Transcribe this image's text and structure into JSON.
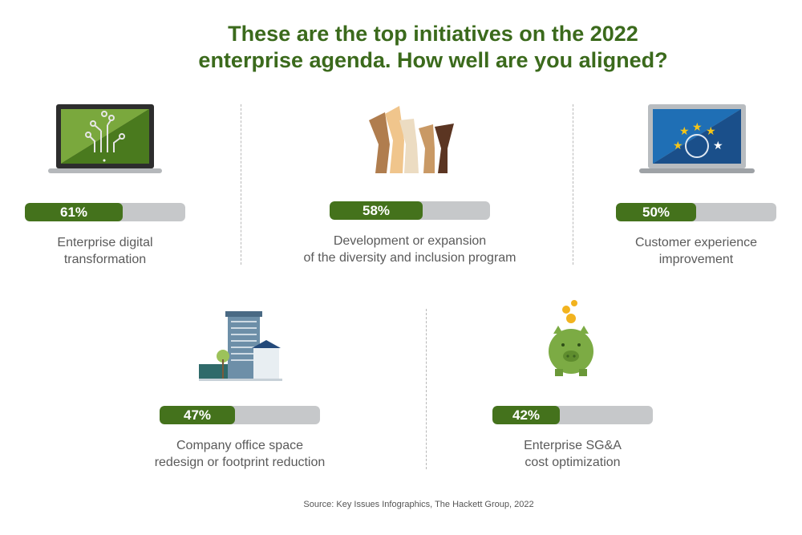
{
  "title": {
    "line1": "These are the top initiatives on the 2022",
    "line2": "enterprise agenda. How well are you aligned?"
  },
  "colors": {
    "title": "#3b6a1c",
    "bar_fill": "#44721c",
    "bar_track": "#c6c8ca",
    "label": "#5a5a5a"
  },
  "chart_data": {
    "type": "bar",
    "orientation": "horizontal",
    "unit": "%",
    "ylim": [
      0,
      100
    ],
    "items": [
      {
        "value": 61,
        "value_label": "61%",
        "label_lines": [
          "Enterprise digital",
          "transformation"
        ],
        "icon": "laptop-circuit-icon"
      },
      {
        "value": 58,
        "value_label": "58%",
        "label_lines": [
          "Development or expansion",
          "of the diversity and inclusion program"
        ],
        "icon": "raised-hands-icon"
      },
      {
        "value": 50,
        "value_label": "50%",
        "label_lines": [
          "Customer experience",
          "improvement"
        ],
        "icon": "laptop-stars-user-icon"
      },
      {
        "value": 47,
        "value_label": "47%",
        "label_lines": [
          "Company office space",
          "redesign or footprint reduction"
        ],
        "icon": "office-buildings-icon"
      },
      {
        "value": 42,
        "value_label": "42%",
        "label_lines": [
          "Enterprise SG&A",
          "cost optimization"
        ],
        "icon": "piggy-bank-icon"
      }
    ]
  },
  "source": "Source: Key Issues Infographics, The Hackett Group, 2022"
}
